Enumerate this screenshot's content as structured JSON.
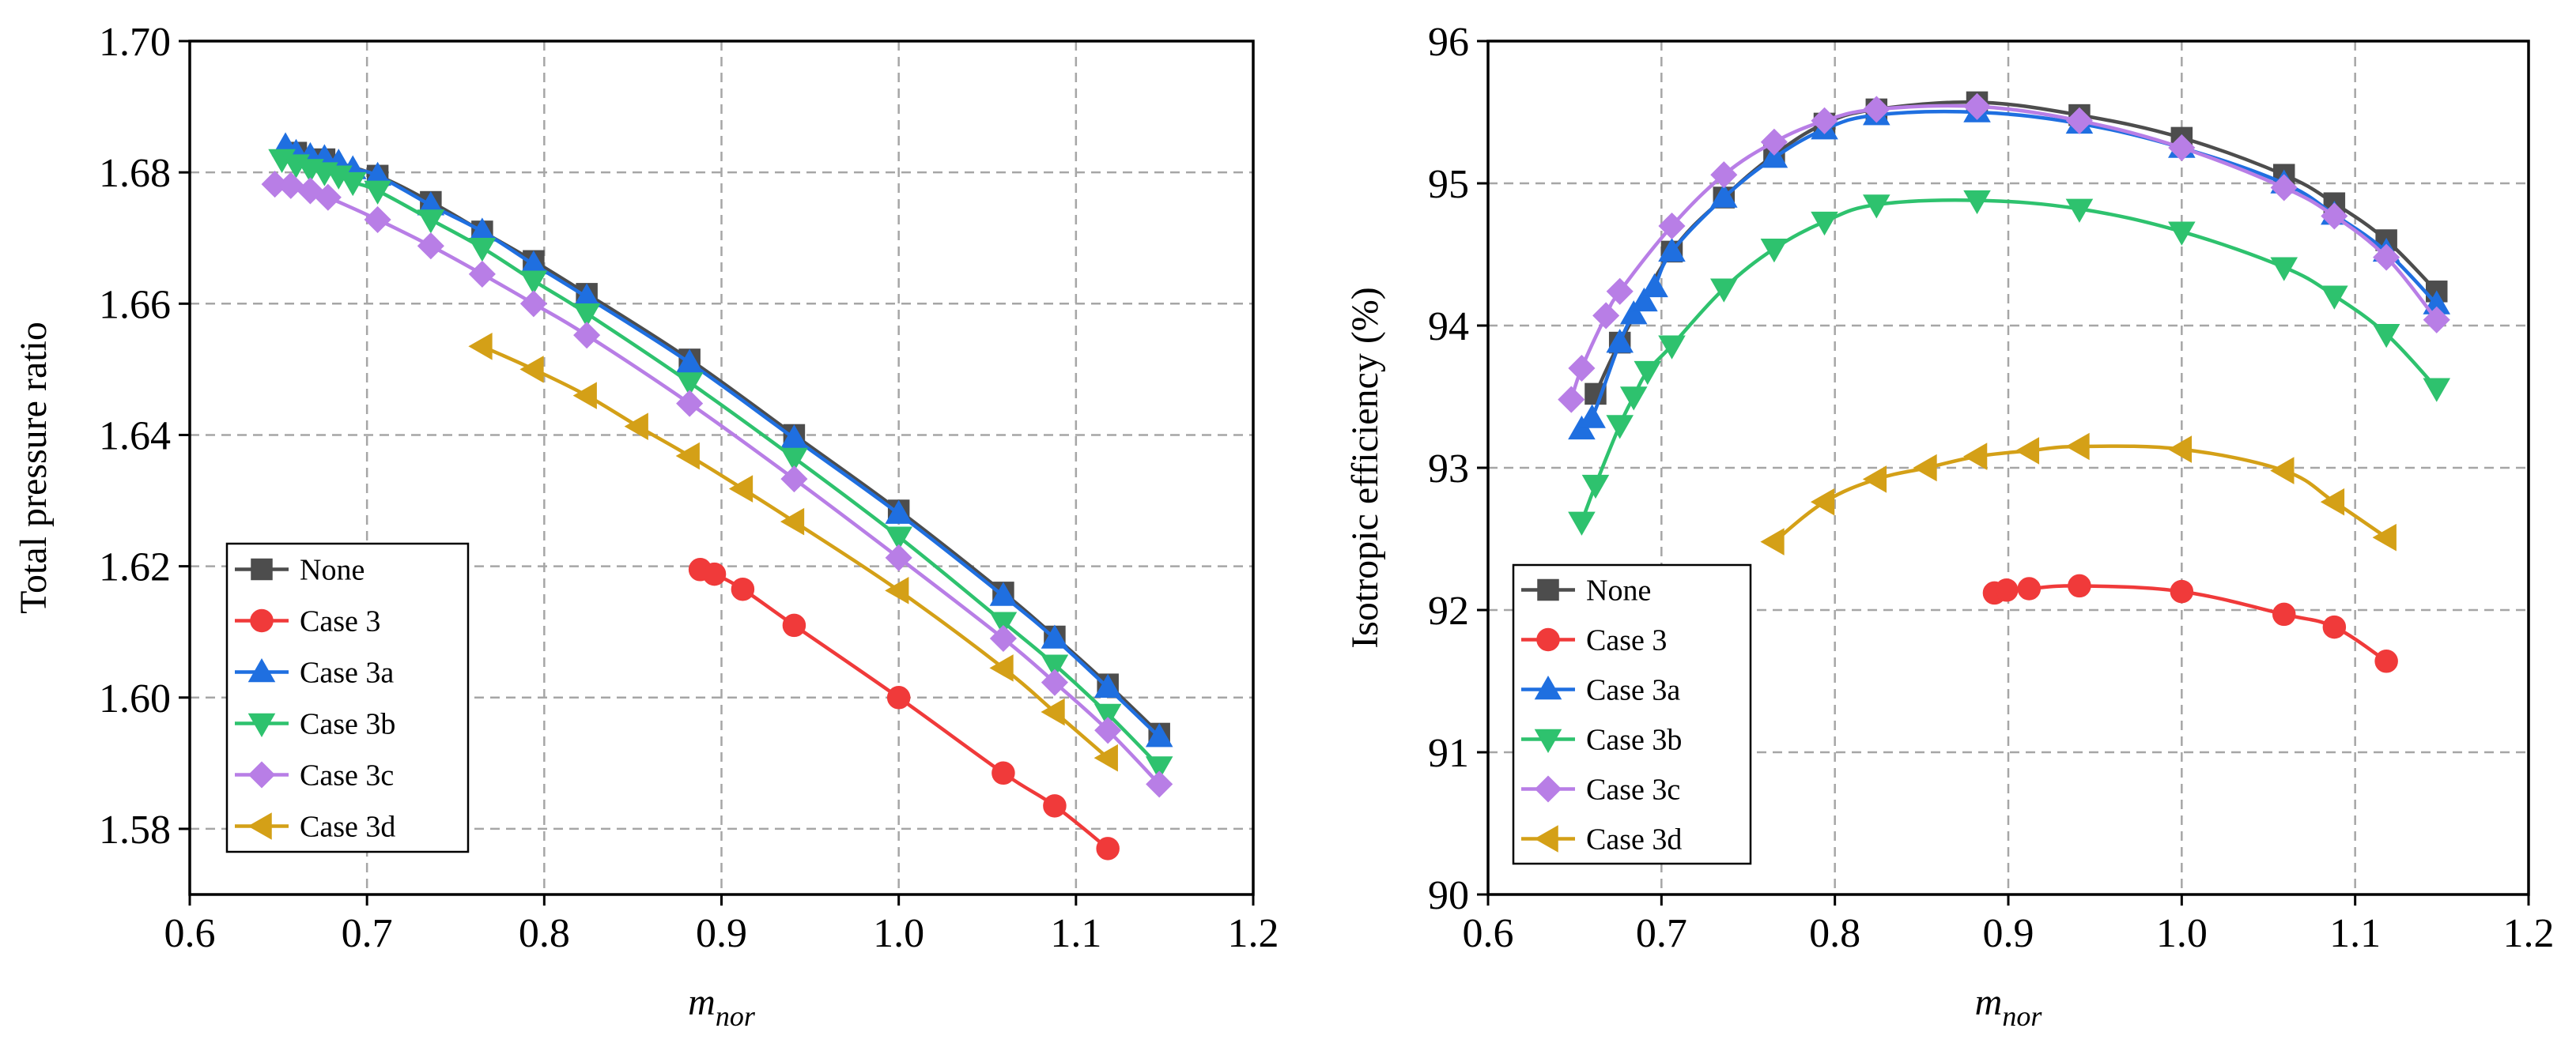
{
  "chart_data": [
    {
      "type": "line",
      "title": "",
      "xlabel": "m",
      "xlabel_sub": "nor",
      "ylabel": "Total pressure ratio",
      "xlim": [
        0.6,
        1.2
      ],
      "ylim": [
        1.57,
        1.7
      ],
      "xticks": [
        "0.6",
        "0.7",
        "0.8",
        "0.9",
        "1.0",
        "1.1",
        "1.2"
      ],
      "yticks": [
        "1.58",
        "1.60",
        "1.62",
        "1.64",
        "1.66",
        "1.68",
        "1.70"
      ],
      "grid": true,
      "legend_position": "bottom-left",
      "series": [
        {
          "name": "None",
          "color": "#4d4d4d",
          "marker": "square",
          "x": [
            0.66,
            0.676,
            0.706,
            0.736,
            0.765,
            0.794,
            0.824,
            0.882,
            0.941,
            1.0,
            1.059,
            1.088,
            1.118,
            1.147
          ],
          "y": [
            1.683,
            1.682,
            1.6795,
            1.6755,
            1.671,
            1.6665,
            1.6615,
            1.6515,
            1.64,
            1.6285,
            1.616,
            1.6093,
            1.602,
            1.5945
          ]
        },
        {
          "name": "Case 3",
          "color": "#f03a3a",
          "marker": "circle",
          "x": [
            0.888,
            0.896,
            0.912,
            0.941,
            1.0,
            1.059,
            1.088,
            1.118
          ],
          "y": [
            1.6195,
            1.6188,
            1.6165,
            1.611,
            1.6,
            1.5885,
            1.5835,
            1.577
          ]
        },
        {
          "name": "Case 3a",
          "color": "#1f6fe0",
          "marker": "triangle-up",
          "x": [
            0.654,
            0.66,
            0.668,
            0.676,
            0.684,
            0.692,
            0.706,
            0.736,
            0.765,
            0.794,
            0.824,
            0.882,
            0.941,
            1.0,
            1.059,
            1.088,
            1.118,
            1.147
          ],
          "y": [
            1.684,
            1.683,
            1.6825,
            1.6822,
            1.6815,
            1.6805,
            1.6795,
            1.675,
            1.671,
            1.666,
            1.661,
            1.651,
            1.6395,
            1.628,
            1.6155,
            1.609,
            1.6015,
            1.594
          ]
        },
        {
          "name": "Case 3b",
          "color": "#2ec26e",
          "marker": "triangle-down",
          "x": [
            0.652,
            0.66,
            0.668,
            0.676,
            0.684,
            0.692,
            0.706,
            0.736,
            0.765,
            0.794,
            0.824,
            0.882,
            0.941,
            1.0,
            1.059,
            1.088,
            1.118,
            1.147
          ],
          "y": [
            1.682,
            1.6812,
            1.6805,
            1.68,
            1.6795,
            1.6785,
            1.6772,
            1.6728,
            1.6685,
            1.6635,
            1.6585,
            1.648,
            1.6365,
            1.6245,
            1.6115,
            1.605,
            1.5975,
            1.5895
          ]
        },
        {
          "name": "Case 3c",
          "color": "#b87ee6",
          "marker": "diamond",
          "x": [
            0.648,
            0.657,
            0.668,
            0.678,
            0.706,
            0.736,
            0.765,
            0.794,
            0.824,
            0.882,
            0.941,
            1.0,
            1.059,
            1.088,
            1.118,
            1.147
          ],
          "y": [
            1.6782,
            1.678,
            1.6772,
            1.6762,
            1.6728,
            1.6688,
            1.6645,
            1.66,
            1.6552,
            1.6448,
            1.6333,
            1.6213,
            1.609,
            1.6023,
            1.595,
            1.5868
          ]
        },
        {
          "name": "Case 3d",
          "color": "#d4a017",
          "marker": "triangle-left",
          "x": [
            0.765,
            0.794,
            0.824,
            0.853,
            0.882,
            0.912,
            0.941,
            1.0,
            1.059,
            1.088,
            1.118
          ],
          "y": [
            1.6535,
            1.65,
            1.646,
            1.6413,
            1.6368,
            1.6318,
            1.6268,
            1.6163,
            1.6045,
            1.5978,
            1.5908
          ]
        }
      ]
    },
    {
      "type": "line",
      "title": "",
      "xlabel": "m",
      "xlabel_sub": "nor",
      "ylabel": "Isotropic efficiency (%)",
      "xlim": [
        0.6,
        1.2
      ],
      "ylim": [
        90,
        96
      ],
      "xticks": [
        "0.6",
        "0.7",
        "0.8",
        "0.9",
        "1.0",
        "1.1",
        "1.2"
      ],
      "yticks": [
        "90",
        "91",
        "92",
        "93",
        "94",
        "95",
        "96"
      ],
      "grid": true,
      "legend_position": "bottom-left",
      "series": [
        {
          "name": "None",
          "color": "#4d4d4d",
          "marker": "square",
          "x": [
            0.662,
            0.676,
            0.706,
            0.736,
            0.765,
            0.794,
            0.824,
            0.882,
            0.941,
            1.0,
            1.059,
            1.088,
            1.118,
            1.147
          ],
          "y": [
            93.52,
            93.88,
            94.52,
            94.9,
            95.2,
            95.42,
            95.52,
            95.57,
            95.48,
            95.32,
            95.06,
            94.86,
            94.6,
            94.24
          ]
        },
        {
          "name": "Case 3",
          "color": "#f03a3a",
          "marker": "circle",
          "x": [
            0.892,
            0.899,
            0.912,
            0.941,
            1.0,
            1.059,
            1.088,
            1.118
          ],
          "y": [
            92.12,
            92.14,
            92.15,
            92.17,
            92.13,
            91.97,
            91.88,
            91.64
          ]
        },
        {
          "name": "Case 3a",
          "color": "#1f6fe0",
          "marker": "triangle-up",
          "x": [
            0.654,
            0.66,
            0.676,
            0.684,
            0.69,
            0.696,
            0.706,
            0.736,
            0.765,
            0.794,
            0.824,
            0.882,
            0.941,
            1.0,
            1.059,
            1.088,
            1.118,
            1.147
          ],
          "y": [
            93.27,
            93.35,
            93.88,
            94.08,
            94.17,
            94.27,
            94.52,
            94.9,
            95.18,
            95.38,
            95.48,
            95.5,
            95.42,
            95.25,
            95.0,
            94.78,
            94.52,
            94.15
          ]
        },
        {
          "name": "Case 3b",
          "color": "#2ec26e",
          "marker": "triangle-down",
          "x": [
            0.654,
            0.662,
            0.676,
            0.684,
            0.692,
            0.706,
            0.736,
            0.765,
            0.794,
            0.824,
            0.882,
            0.941,
            1.0,
            1.059,
            1.088,
            1.118,
            1.147
          ],
          "y": [
            92.62,
            92.88,
            93.3,
            93.5,
            93.68,
            93.86,
            94.26,
            94.54,
            94.73,
            94.85,
            94.88,
            94.82,
            94.66,
            94.41,
            94.21,
            93.94,
            93.56
          ]
        },
        {
          "name": "Case 3c",
          "color": "#b87ee6",
          "marker": "diamond",
          "x": [
            0.648,
            0.654,
            0.668,
            0.676,
            0.706,
            0.736,
            0.765,
            0.794,
            0.824,
            0.882,
            0.941,
            1.0,
            1.059,
            1.088,
            1.118,
            1.147
          ],
          "y": [
            93.48,
            93.7,
            94.07,
            94.24,
            94.7,
            95.06,
            95.29,
            95.44,
            95.52,
            95.54,
            95.44,
            95.25,
            94.97,
            94.77,
            94.48,
            94.04
          ]
        },
        {
          "name": "Case 3d",
          "color": "#d4a017",
          "marker": "triangle-left",
          "x": [
            0.765,
            0.794,
            0.824,
            0.853,
            0.882,
            0.912,
            0.941,
            1.0,
            1.059,
            1.088,
            1.118
          ],
          "y": [
            92.48,
            92.76,
            92.92,
            93.0,
            93.08,
            93.12,
            93.15,
            93.13,
            92.98,
            92.76,
            92.51
          ]
        }
      ]
    }
  ]
}
